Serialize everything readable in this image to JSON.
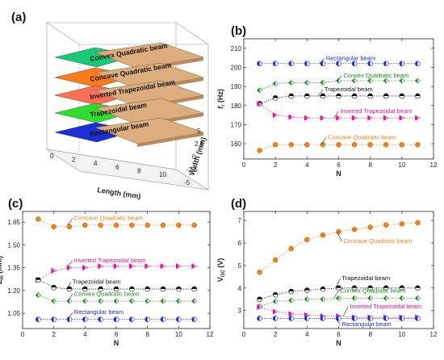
{
  "panel_a": {
    "letter": "(a)",
    "layers": [
      {
        "label": "Convex Quadratic beam",
        "color": "#19c97a"
      },
      {
        "label": "Concave Quadratic beam",
        "color": "#ff7a1a"
      },
      {
        "label": "Inverted Trapezoidal beam",
        "color": "#ff6e55"
      },
      {
        "label": "Trapezoidal beam",
        "color": "#2fdc2f"
      },
      {
        "label": "Rectangular beam",
        "color": "#1b2fd8"
      }
    ],
    "xlabel": "Length (mm)",
    "ylabel": "Width (mm)",
    "x_ticks": [
      "0",
      "2",
      "4",
      "6",
      "8",
      "10"
    ],
    "y_ticks": [
      "5",
      "2.5",
      "0",
      "-2.5",
      "-5"
    ],
    "mass_color": "#dcae7e"
  },
  "chart_data": [
    {
      "panel": "(b)",
      "type": "scatter",
      "xlabel": "N",
      "ylabel_main": "f",
      "ylabel_sub": "r",
      "ylabel_unit": "(Hz)",
      "xlim": [
        0,
        12
      ],
      "ylim": [
        152,
        215
      ],
      "x_ticks": [
        "0",
        "2",
        "4",
        "6",
        "8",
        "10",
        "12"
      ],
      "y_ticks": [
        "160",
        "170",
        "180",
        "190",
        "200",
        "210"
      ],
      "series": [
        {
          "name": "Rectangular beam",
          "color": "#1b2fd8",
          "x": [
            1,
            2,
            3,
            4,
            5,
            6,
            7,
            8,
            9,
            10,
            11
          ],
          "values": [
            202,
            202,
            202,
            202,
            202,
            202,
            202,
            202,
            202,
            202,
            202
          ]
        },
        {
          "name": "Convex Quadratic beam",
          "color": "#1a8a1a",
          "x": [
            1,
            2,
            3,
            4,
            5,
            6,
            7,
            8,
            9,
            10,
            11
          ],
          "values": [
            188,
            191.5,
            192,
            192,
            192,
            193,
            193,
            193,
            193,
            193,
            193
          ]
        },
        {
          "name": "Trapezoidal beam",
          "color": "#111111",
          "x": [
            1,
            2,
            3,
            4,
            5,
            6,
            7,
            8,
            9,
            10,
            11
          ],
          "values": [
            181,
            184,
            185,
            185,
            185,
            185,
            185,
            185,
            185,
            185,
            185
          ]
        },
        {
          "name": "Inverted Trapezoidal beam",
          "color": "#e0149a",
          "x": [
            1,
            2,
            3,
            4,
            5,
            6,
            7,
            8,
            9,
            10,
            11
          ],
          "values": [
            181,
            175,
            174,
            173.5,
            173.5,
            173.5,
            173.5,
            173.5,
            173.5,
            173.5,
            173.5
          ]
        },
        {
          "name": "Concave Quadratic beam",
          "color": "#f0821a",
          "x": [
            1,
            2,
            3,
            4,
            5,
            6,
            7,
            8,
            9,
            10,
            11
          ],
          "values": [
            156.5,
            159.5,
            159.5,
            159.5,
            159.5,
            159.5,
            159.5,
            159.5,
            159.5,
            159.5,
            159.5
          ]
        }
      ],
      "annotations": [
        "Rectangular beam",
        "Convex Quadratic beam",
        "Trapezoidal beam",
        "Inverted Trapezoidal beam",
        "Concave Quadratic beam"
      ]
    },
    {
      "panel": "(c)",
      "type": "scatter",
      "xlabel": "N",
      "ylabel_main": "Z",
      "ylabel_sub": "m",
      "ylabel_unit": "(mm)",
      "xlim": [
        0,
        12
      ],
      "ylim": [
        0.95,
        1.72
      ],
      "x_ticks": [
        "0",
        "2",
        "4",
        "6",
        "8",
        "10",
        "12"
      ],
      "y_ticks": [
        "1.05",
        "1.20",
        "1.35",
        "1.50",
        "1.65"
      ],
      "series": [
        {
          "name": "Concave Quadratic beam",
          "color": "#f0821a",
          "x": [
            1,
            2,
            3,
            4,
            5,
            6,
            7,
            8,
            9,
            10,
            11
          ],
          "values": [
            1.67,
            1.62,
            1.62,
            1.63,
            1.63,
            1.63,
            1.63,
            1.63,
            1.63,
            1.63,
            1.63
          ]
        },
        {
          "name": "Inverted Trapezoidal beam",
          "color": "#e0149a",
          "x": [
            1,
            2,
            3,
            4,
            5,
            6,
            7,
            8,
            9,
            10,
            11
          ],
          "values": [
            1.27,
            1.33,
            1.35,
            1.35,
            1.36,
            1.36,
            1.36,
            1.36,
            1.36,
            1.36,
            1.36
          ]
        },
        {
          "name": "Trapezoidal beam",
          "color": "#111111",
          "x": [
            1,
            2,
            3,
            4,
            5,
            6,
            7,
            8,
            9,
            10,
            11
          ],
          "values": [
            1.27,
            1.22,
            1.21,
            1.21,
            1.21,
            1.21,
            1.21,
            1.21,
            1.21,
            1.21,
            1.21
          ]
        },
        {
          "name": "Convex Quadratic beam",
          "color": "#1a8a1a",
          "x": [
            1,
            2,
            3,
            4,
            5,
            6,
            7,
            8,
            9,
            10,
            11
          ],
          "values": [
            1.17,
            1.13,
            1.13,
            1.13,
            1.13,
            1.13,
            1.13,
            1.13,
            1.13,
            1.13,
            1.13
          ]
        },
        {
          "name": "Rectangular beam",
          "color": "#1b2fd8",
          "x": [
            1,
            2,
            3,
            4,
            5,
            6,
            7,
            8,
            9,
            10,
            11
          ],
          "values": [
            1.01,
            1.01,
            1.01,
            1.01,
            1.01,
            1.01,
            1.01,
            1.01,
            1.01,
            1.01,
            1.01
          ]
        }
      ],
      "annotations": [
        "Concave Quadratic beam",
        "Inverted Trapezoidal beam",
        "Trapezoidal beam",
        "Convex Quadratic beam",
        "Rectangular beam"
      ]
    },
    {
      "panel": "(d)",
      "type": "scatter",
      "xlabel": "N",
      "ylabel_main": "V",
      "ylabel_sub": "OC",
      "ylabel_unit": "(V)",
      "xlim": [
        0,
        12
      ],
      "ylim": [
        2.2,
        7.4
      ],
      "x_ticks": [
        "0",
        "2",
        "4",
        "6",
        "8",
        "10",
        "12"
      ],
      "y_ticks": [
        "3",
        "4",
        "5",
        "6",
        "7"
      ],
      "series": [
        {
          "name": "Concave Quadratic beam",
          "color": "#f0821a",
          "x": [
            1,
            2,
            3,
            4,
            5,
            6,
            7,
            8,
            9,
            10,
            11
          ],
          "values": [
            4.7,
            5.25,
            5.75,
            6.15,
            6.35,
            6.5,
            6.6,
            6.7,
            6.8,
            6.85,
            6.9
          ]
        },
        {
          "name": "Trapezoidal beam",
          "color": "#111111",
          "x": [
            1,
            2,
            3,
            4,
            5,
            6,
            7,
            8,
            9,
            10,
            11
          ],
          "values": [
            3.5,
            3.7,
            3.85,
            3.9,
            3.95,
            4.0,
            4.0,
            4.0,
            4.0,
            4.0,
            4.0
          ]
        },
        {
          "name": "Convex Quadratic beam",
          "color": "#1a8a1a",
          "x": [
            1,
            2,
            3,
            4,
            5,
            6,
            7,
            8,
            9,
            10,
            11
          ],
          "values": [
            3.2,
            3.4,
            3.45,
            3.5,
            3.5,
            3.55,
            3.55,
            3.55,
            3.55,
            3.55,
            3.55
          ]
        },
        {
          "name": "Inverted Trapezoidal beam",
          "color": "#e0149a",
          "x": [
            1,
            2,
            3,
            4,
            5,
            6,
            7,
            8,
            9,
            10,
            11
          ],
          "values": [
            3.15,
            2.95,
            2.85,
            2.8,
            2.75,
            2.75,
            2.7,
            2.7,
            2.7,
            2.7,
            2.7
          ]
        },
        {
          "name": "Rectangular beam",
          "color": "#1b2fd8",
          "x": [
            1,
            2,
            3,
            4,
            5,
            6,
            7,
            8,
            9,
            10,
            11
          ],
          "values": [
            2.65,
            2.65,
            2.65,
            2.65,
            2.65,
            2.65,
            2.65,
            2.65,
            2.65,
            2.65,
            2.65
          ]
        }
      ],
      "annotations": [
        "Concave Quadratic beam",
        "Trapezoidal beam",
        "Convex Quadratic beam",
        "Inverted Trapezoidal beam",
        "Rectangular beam"
      ]
    }
  ]
}
